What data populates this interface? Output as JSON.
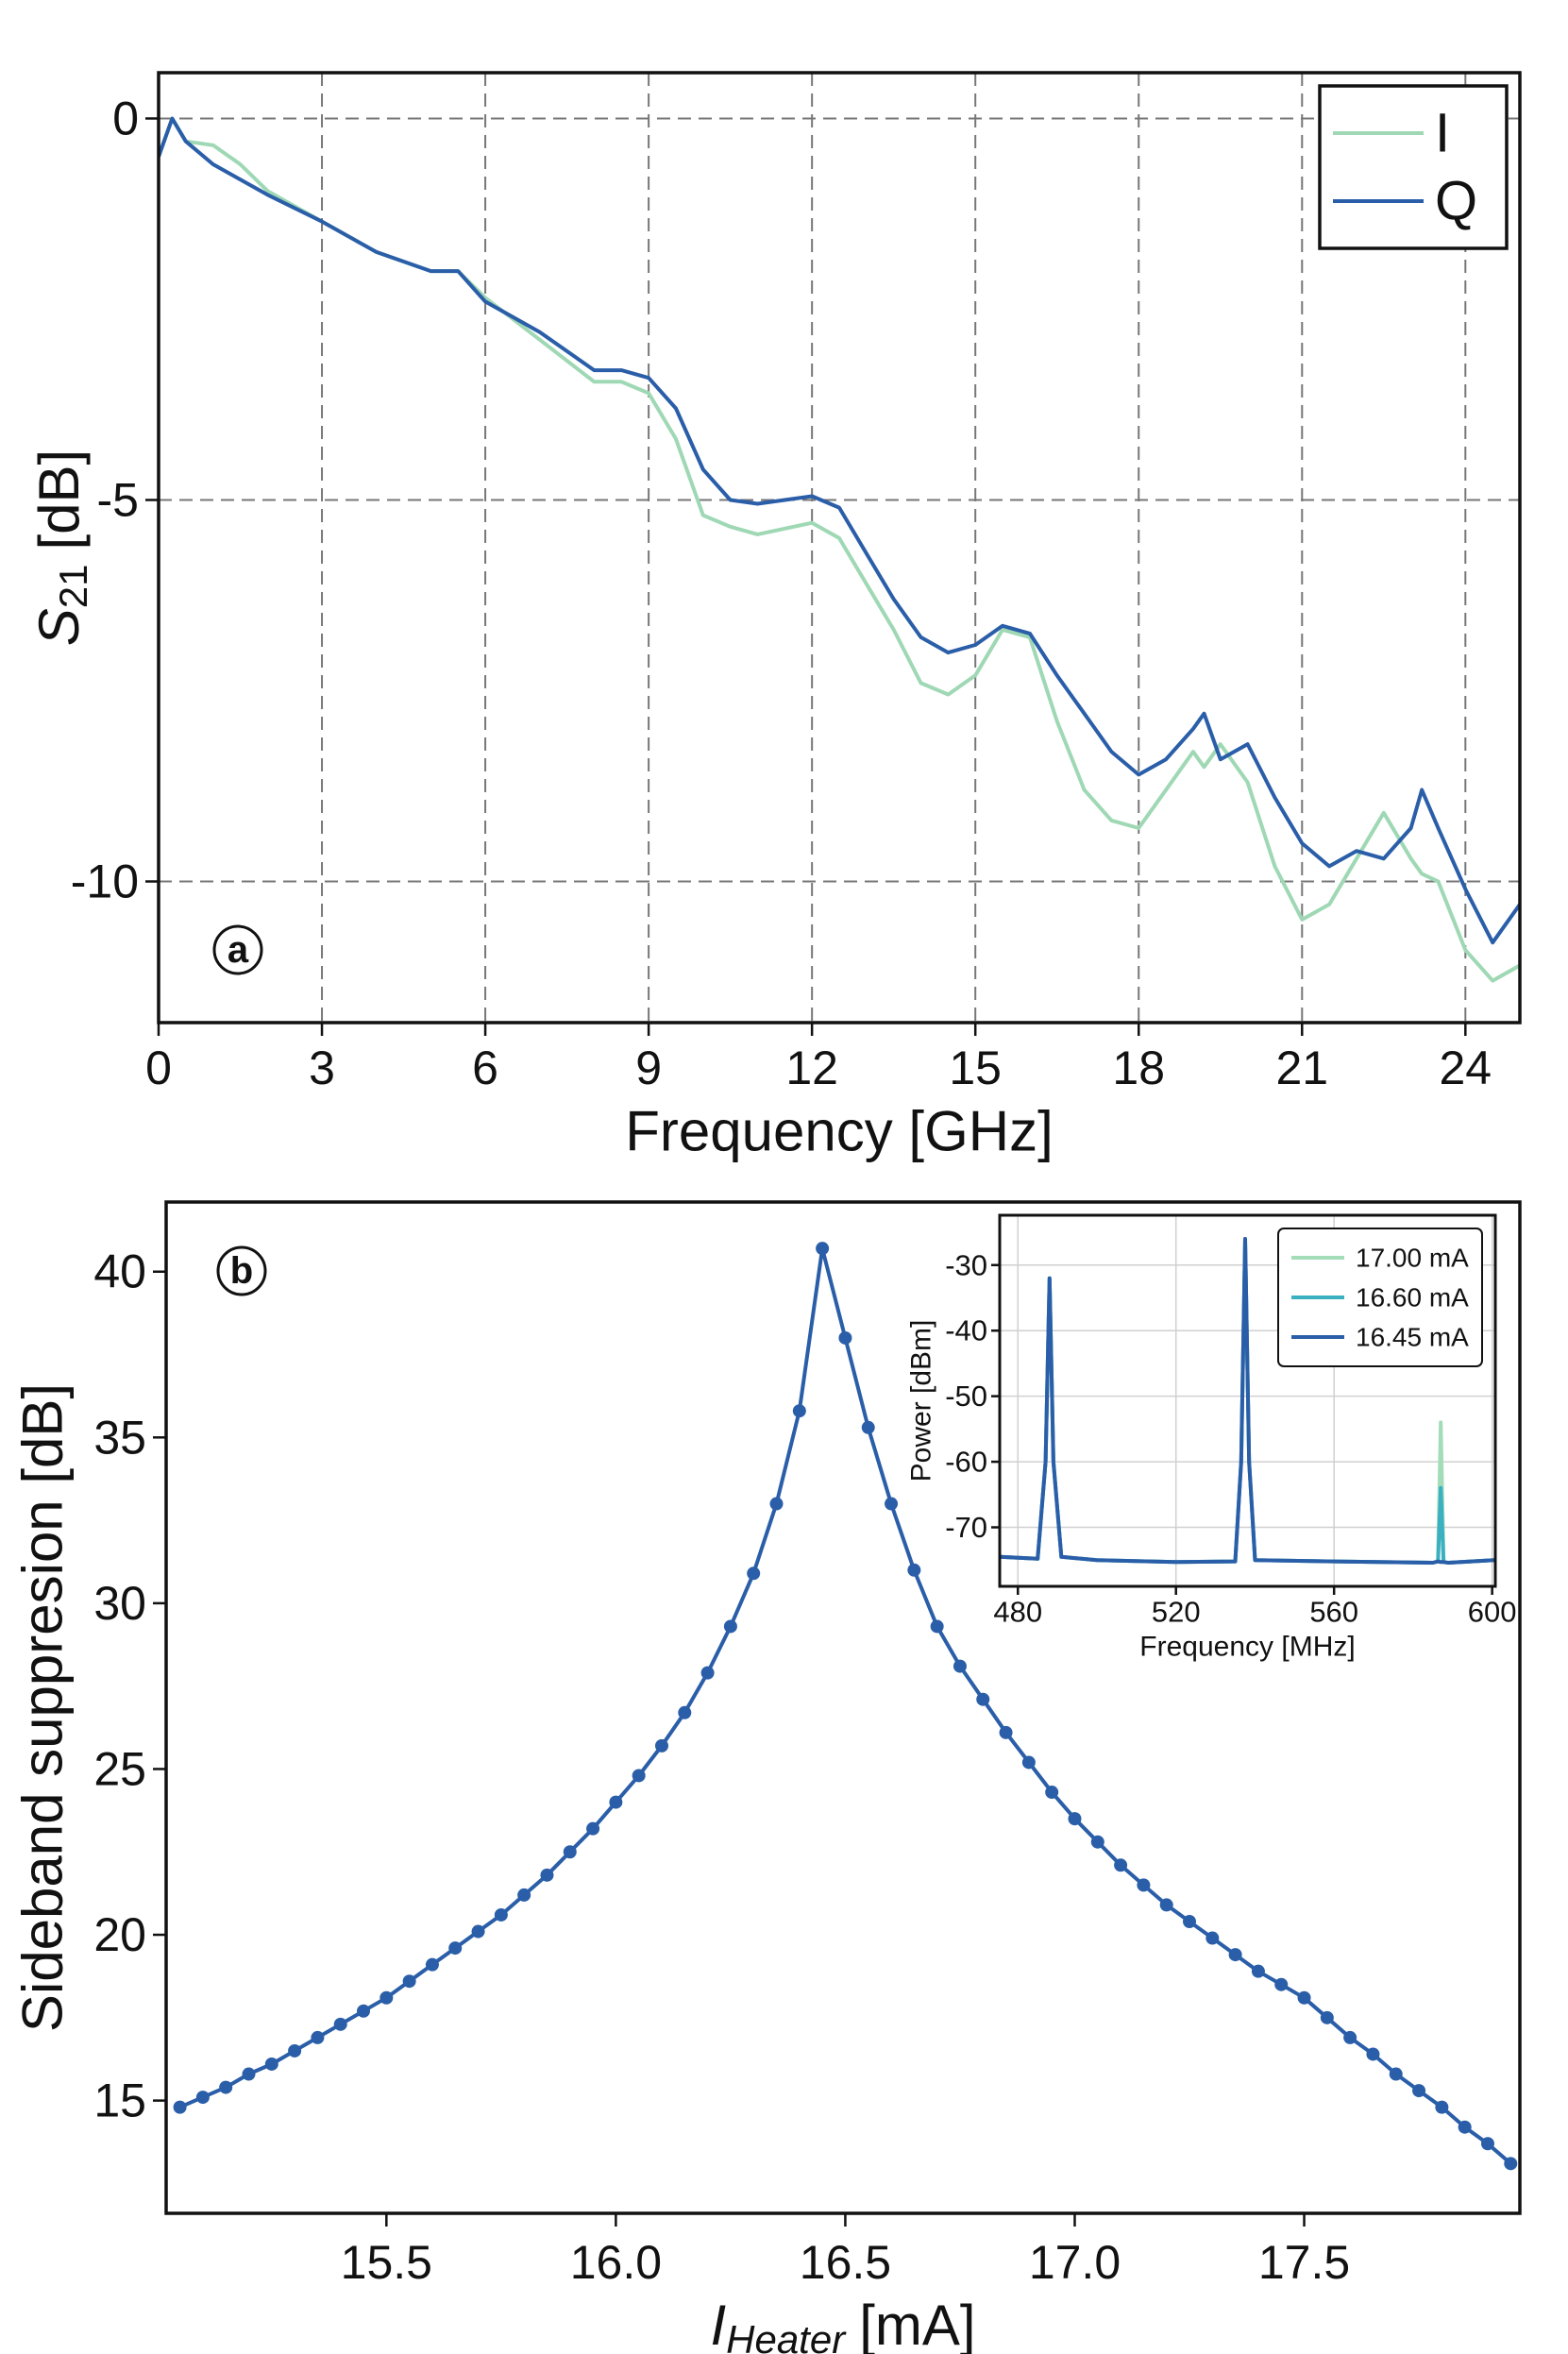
{
  "chart_data": [
    {
      "type": "line",
      "annotation": "a",
      "xlabel": "Frequency [GHz]",
      "ylabel": {
        "symbol": "S",
        "subscript": "21",
        "unit": "[dB]"
      },
      "xlim": [
        0,
        25
      ],
      "ylim": [
        -11.85,
        0.6
      ],
      "xticks": [
        0,
        3,
        6,
        9,
        12,
        15,
        18,
        21,
        24
      ],
      "yticks": [
        0,
        -5,
        -10
      ],
      "grid": "dashed",
      "legend": "upper right",
      "x": [
        0,
        0.25,
        0.5,
        1,
        1.5,
        2,
        3,
        4,
        5,
        5.5,
        6,
        7,
        8,
        8.5,
        9,
        9.5,
        10,
        10.5,
        11,
        12,
        12.5,
        13,
        13.5,
        14,
        14.5,
        15,
        15.5,
        16,
        16.5,
        17,
        17.5,
        18,
        18.5,
        19,
        19.2,
        19.5,
        20,
        20.5,
        21,
        21.5,
        22,
        22.5,
        23,
        23.2,
        23.5,
        24,
        24.5,
        25
      ],
      "series": [
        {
          "name": "I",
          "color": "#9fd8b4",
          "values": [
            -0.5,
            0,
            -0.3,
            -0.35,
            -0.6,
            -0.95,
            -1.35,
            -1.75,
            -2.0,
            -2.0,
            -2.35,
            -2.9,
            -3.45,
            -3.45,
            -3.6,
            -4.2,
            -5.2,
            -5.35,
            -5.45,
            -5.3,
            -5.5,
            -6.1,
            -6.7,
            -7.4,
            -7.55,
            -7.3,
            -6.7,
            -6.8,
            -7.9,
            -8.8,
            -9.2,
            -9.3,
            -8.8,
            -8.3,
            -8.5,
            -8.2,
            -8.7,
            -9.8,
            -10.5,
            -10.3,
            -9.7,
            -9.1,
            -9.7,
            -9.9,
            -10.0,
            -10.9,
            -11.3,
            -11.1
          ]
        },
        {
          "name": "Q",
          "color": "#2a5ea8",
          "values": [
            -0.5,
            0,
            -0.3,
            -0.6,
            -0.8,
            -1.0,
            -1.35,
            -1.75,
            -2.0,
            -2.0,
            -2.4,
            -2.8,
            -3.3,
            -3.3,
            -3.4,
            -3.8,
            -4.6,
            -5.0,
            -5.05,
            -4.95,
            -5.1,
            -5.7,
            -6.3,
            -6.8,
            -7.0,
            -6.9,
            -6.65,
            -6.75,
            -7.3,
            -7.8,
            -8.3,
            -8.6,
            -8.4,
            -8.0,
            -7.8,
            -8.4,
            -8.2,
            -8.9,
            -9.5,
            -9.8,
            -9.6,
            -9.7,
            -9.3,
            -8.8,
            -9.3,
            -10.1,
            -10.8,
            -10.3
          ]
        }
      ]
    },
    {
      "type": "line",
      "annotation": "b",
      "markers": true,
      "xlabel": {
        "symbol": "I",
        "subscript": "Heater",
        "unit": "[mA]"
      },
      "ylabel": "Sideband suppresion [dB]",
      "xlim": [
        15.02,
        17.97
      ],
      "ylim": [
        11.6,
        42.1
      ],
      "xticks": [
        15.5,
        {
          "value": 16,
          "label": "16.0"
        },
        16.5,
        {
          "value": 17,
          "label": "17.0"
        },
        17.5
      ],
      "yticks": [
        15,
        20,
        25,
        30,
        35,
        40
      ],
      "grid": "none",
      "x": [
        15.05,
        15.1,
        15.15,
        15.2,
        15.25,
        15.3,
        15.35,
        15.4,
        15.45,
        15.5,
        15.55,
        15.6,
        15.65,
        15.7,
        15.75,
        15.8,
        15.85,
        15.9,
        15.95,
        16.0,
        16.05,
        16.1,
        16.15,
        16.2,
        16.25,
        16.3,
        16.35,
        16.4,
        16.45,
        16.5,
        16.55,
        16.6,
        16.65,
        16.7,
        16.75,
        16.8,
        16.85,
        16.9,
        16.95,
        17.0,
        17.05,
        17.1,
        17.15,
        17.2,
        17.25,
        17.3,
        17.35,
        17.4,
        17.45,
        17.5,
        17.55,
        17.6,
        17.65,
        17.7,
        17.75,
        17.8,
        17.85,
        17.9,
        17.95
      ],
      "series": [
        {
          "color": "#2a5ea8",
          "values": [
            14.8,
            15.1,
            15.4,
            15.8,
            16.1,
            16.5,
            16.9,
            17.3,
            17.7,
            18.1,
            18.6,
            19.1,
            19.6,
            20.1,
            20.6,
            21.2,
            21.8,
            22.5,
            23.2,
            24.0,
            24.8,
            25.7,
            26.7,
            27.9,
            29.3,
            30.9,
            33.0,
            35.8,
            40.7,
            38.0,
            35.3,
            33.0,
            31.0,
            29.3,
            28.1,
            27.1,
            26.1,
            25.2,
            24.3,
            23.5,
            22.8,
            22.1,
            21.5,
            20.9,
            20.4,
            19.9,
            19.4,
            18.9,
            18.5,
            18.1,
            17.5,
            16.9,
            16.4,
            15.8,
            15.3,
            14.8,
            14.2,
            13.7,
            13.1
          ]
        }
      ]
    },
    {
      "type": "line",
      "inset": true,
      "xlabel": "Frequency [MHz]",
      "ylabel": "Power [dBm]",
      "xlim": [
        475.4,
        600.8
      ],
      "ylim": [
        -79,
        -22.4
      ],
      "xticks": [
        480,
        520,
        560,
        600
      ],
      "yticks": [
        -30,
        -40,
        -50,
        -60,
        -70
      ],
      "grid": "solid",
      "legend": "upper right",
      "x": [
        475.5,
        485,
        487,
        488,
        489,
        491,
        500,
        520,
        535,
        536.5,
        537.5,
        538.5,
        540,
        560,
        585,
        586.3,
        587,
        587.7,
        589,
        600.5
      ],
      "series": [
        {
          "name": "17.00 mA",
          "color": "#a2dcb8",
          "values": [
            -74.5,
            -74.8,
            -60,
            -32,
            -60,
            -74.5,
            -75,
            -75.3,
            -75.2,
            -60,
            -26,
            -60,
            -75,
            -75.2,
            -75.4,
            -75.2,
            -54,
            -75.3,
            -75.4,
            -75
          ]
        },
        {
          "name": "16.60 mA",
          "color": "#3bb0c0",
          "values": [
            -74.5,
            -74.8,
            -60,
            -32,
            -60,
            -74.5,
            -75,
            -75.3,
            -75.2,
            -60,
            -26,
            -60,
            -75,
            -75.2,
            -75.4,
            -75.2,
            -64,
            -75.3,
            -75.4,
            -75
          ]
        },
        {
          "name": "16.45 mA",
          "color": "#2a5ea8",
          "values": [
            -74.5,
            -74.8,
            -60,
            -32,
            -60,
            -74.5,
            -75,
            -75.3,
            -75.2,
            -60,
            -26,
            -60,
            -75,
            -75.2,
            -75.4,
            -75.2,
            -75.3,
            -75.3,
            -75.4,
            -75
          ]
        }
      ]
    }
  ]
}
